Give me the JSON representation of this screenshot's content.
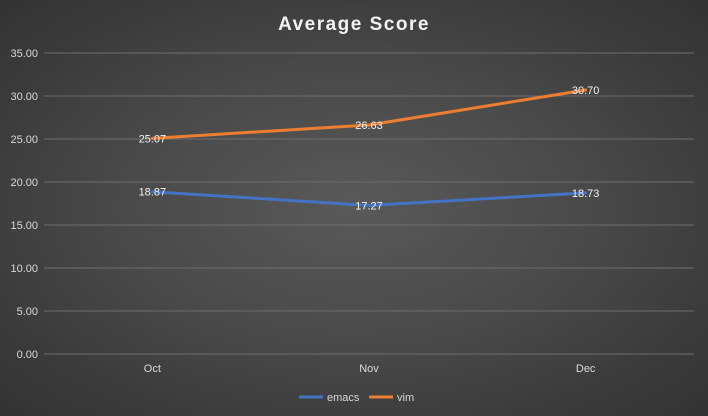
{
  "chart_data": {
    "type": "line",
    "title": "Average Score",
    "categories": [
      "Oct",
      "Nov",
      "Dec"
    ],
    "series": [
      {
        "name": "emacs",
        "values": [
          18.87,
          17.27,
          18.73
        ],
        "value_labels": [
          "18.87",
          "17.27",
          "18.73"
        ],
        "color": "#4472C4"
      },
      {
        "name": "vim",
        "values": [
          25.07,
          26.63,
          30.7
        ],
        "value_labels": [
          "25.07",
          "26.63",
          "30.70"
        ],
        "color": "#ED7D31"
      }
    ],
    "ylim": [
      0,
      35
    ],
    "yticks": [
      "0.00",
      "5.00",
      "10.00",
      "15.00",
      "20.00",
      "25.00",
      "30.00",
      "35.00"
    ],
    "grid": true,
    "legend_position": "bottom"
  }
}
